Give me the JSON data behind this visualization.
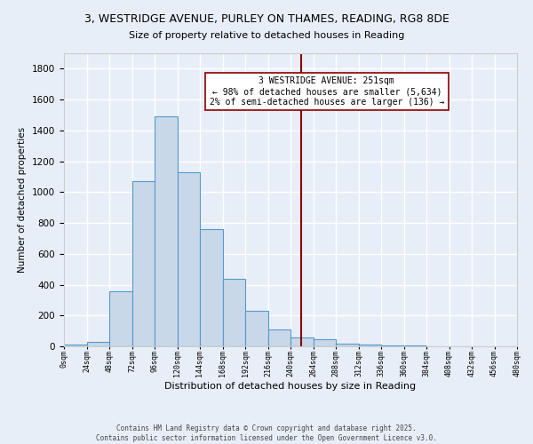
{
  "title": "3, WESTRIDGE AVENUE, PURLEY ON THAMES, READING, RG8 8DE",
  "subtitle": "Size of property relative to detached houses in Reading",
  "xlabel": "Distribution of detached houses by size in Reading",
  "ylabel": "Number of detached properties",
  "bin_edges": [
    0,
    24,
    48,
    72,
    96,
    120,
    144,
    168,
    192,
    216,
    240,
    264,
    288,
    312,
    336,
    360,
    384,
    408,
    432,
    456,
    480
  ],
  "bar_heights": [
    10,
    30,
    355,
    1070,
    1490,
    1130,
    760,
    440,
    230,
    110,
    60,
    45,
    20,
    10,
    5,
    3,
    2,
    1,
    0,
    0
  ],
  "bar_color": "#c8d8e8",
  "bar_edgecolor": "#5599cc",
  "vline_x": 251,
  "vline_color": "#8b0000",
  "annotation_title": "3 WESTRIDGE AVENUE: 251sqm",
  "annotation_line1": "← 98% of detached houses are smaller (5,634)",
  "annotation_line2": "2% of semi-detached houses are larger (136) →",
  "annotation_box_color": "#ffffff",
  "annotation_box_edge": "#8b0000",
  "ylim": [
    0,
    1900
  ],
  "yticks": [
    0,
    200,
    400,
    600,
    800,
    1000,
    1200,
    1400,
    1600,
    1800
  ],
  "background_color": "#e8eef8",
  "grid_color": "#ffffff",
  "footer_line1": "Contains HM Land Registry data © Crown copyright and database right 2025.",
  "footer_line2": "Contains public sector information licensed under the Open Government Licence v3.0."
}
